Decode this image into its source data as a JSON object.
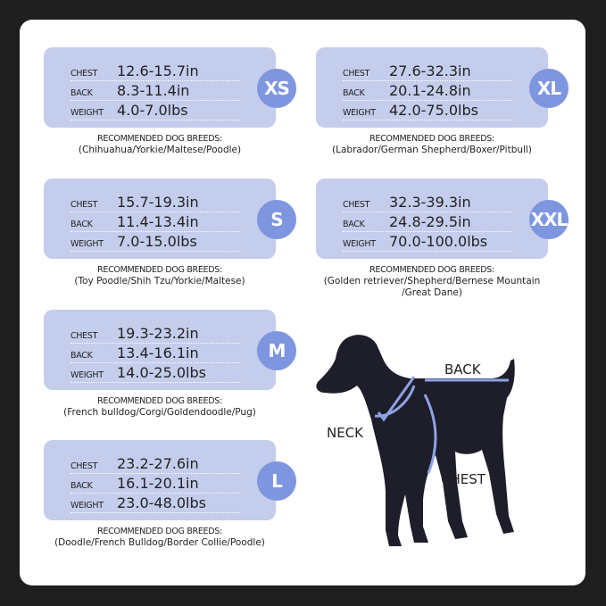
{
  "sizes": [
    {
      "size": "XS",
      "chest": "12.6-15.7in",
      "back": "8.3-11.4in",
      "weight": "4.0-7.0lbs",
      "breeds": "(Chihuahua/Yorkie/Maltese/Poodle)"
    },
    {
      "size": "S",
      "chest": "15.7-19.3in",
      "back": "11.4-13.4in",
      "weight": "7.0-15.0lbs",
      "breeds": "(Toy Poodle/Shih Tzu/Yorkie/Maltese)"
    },
    {
      "size": "M",
      "chest": "19.3-23.2in",
      "back": "13.4-16.1in",
      "weight": "14.0-25.0lbs",
      "breeds": "(French bulldog/Corgi/Goldendoodle/Pug)"
    },
    {
      "size": "L",
      "chest": "23.2-27.6in",
      "back": "16.1-20.1in",
      "weight": "23.0-48.0lbs",
      "breeds": "(Doodle/French Bulldog/Border Collie/Poodle)"
    },
    {
      "size": "XL",
      "chest": "27.6-32.3in",
      "back": "20.1-24.8in",
      "weight": "42.0-75.0lbs",
      "breeds": "(Labrador/German Shepherd/Boxer/Pitbull)"
    },
    {
      "size": "XXL",
      "chest": "32.3-39.3in",
      "back": "24.8-29.5in",
      "weight": "70.0-100.0lbs",
      "breeds": "(Golden retriever/Shepherd/Bernese Mountain /Great Dane)"
    }
  ],
  "labels": {
    "chest": "CHEST",
    "back": "BACK",
    "weight": "WEIGHT",
    "breeds_header": "RECOMMENDED DOG BREEDS:"
  },
  "diagram": {
    "back": "BACK",
    "neck": "NECK",
    "chest": "CHEST"
  },
  "colors": {
    "box": "#c5cdec",
    "badge": "#7e95df",
    "measure_line": "#8ea2e6"
  }
}
